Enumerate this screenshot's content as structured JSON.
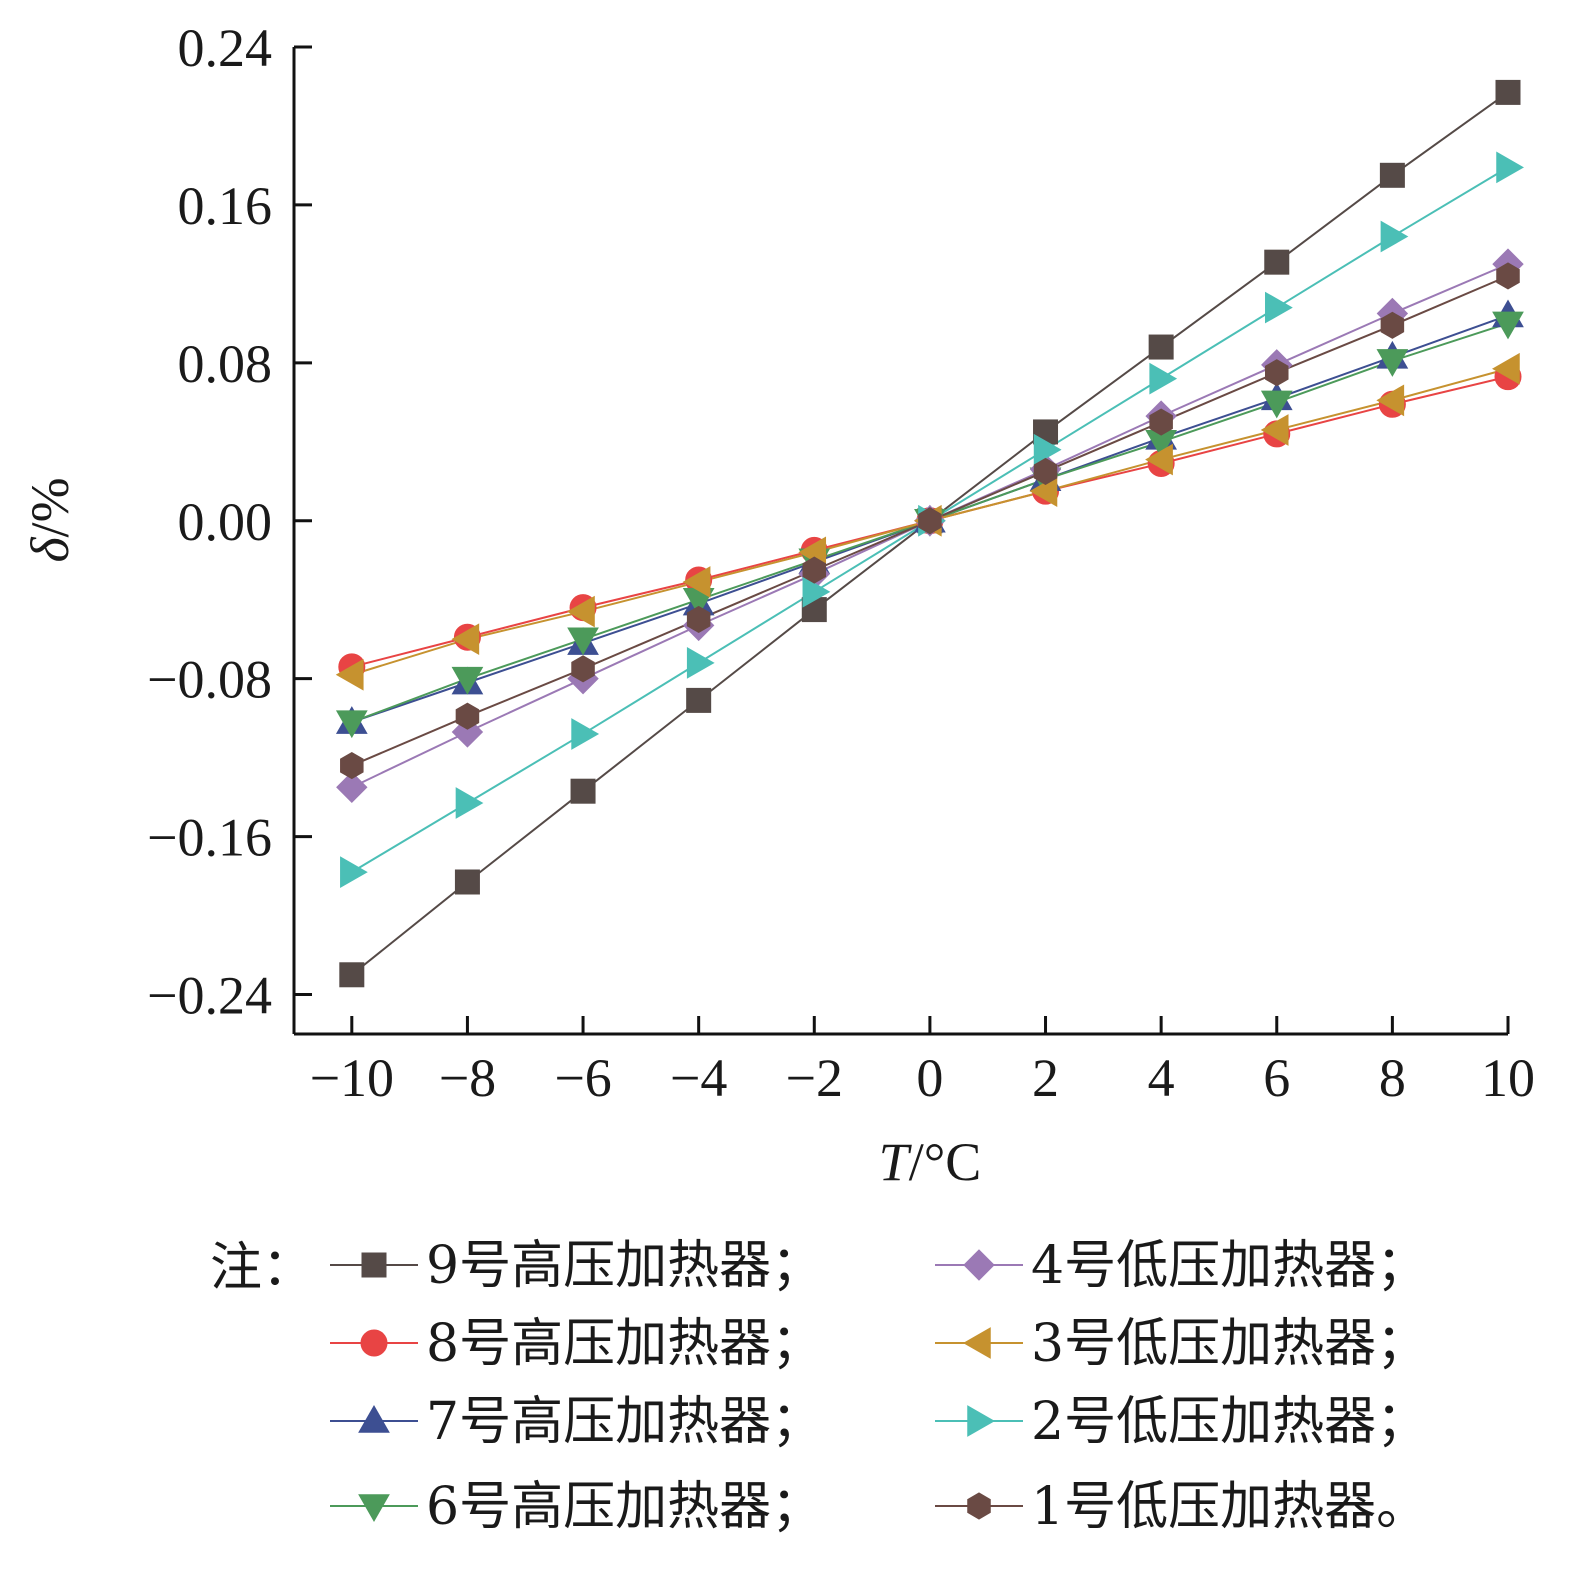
{
  "chart_data": {
    "type": "line",
    "title": "",
    "xlabel_italic": "T",
    "xlabel_rest": "/°C",
    "ylabel_italic": "δ",
    "ylabel_rest": "/%",
    "x": [
      -10,
      -8,
      -6,
      -4,
      -2,
      0,
      2,
      4,
      6,
      8,
      10
    ],
    "xlim": [
      -11,
      10
    ],
    "ylim": [
      -0.26,
      0.24
    ],
    "x_ticks": [
      -10,
      -8,
      -6,
      -4,
      -2,
      0,
      2,
      4,
      6,
      8,
      10
    ],
    "x_tick_labels": [
      "−10",
      "−8",
      "−6",
      "−4",
      "−2",
      "0",
      "2",
      "4",
      "6",
      "8",
      "10"
    ],
    "y_ticks": [
      -0.24,
      -0.16,
      -0.08,
      0.0,
      0.08,
      0.16,
      0.24
    ],
    "y_tick_labels": [
      "−0.24",
      "−0.16",
      "−0.08",
      "0.00",
      "0.08",
      "0.16",
      "0.24"
    ],
    "grid": false,
    "legend_prefix": "注：",
    "legend_placement": "bottom",
    "series": [
      {
        "name": "9号高压加热器；",
        "marker": "square",
        "color": "#554a47",
        "values": [
          -0.23,
          -0.183,
          -0.137,
          -0.091,
          -0.045,
          0.0,
          0.045,
          0.088,
          0.131,
          0.175,
          0.217
        ]
      },
      {
        "name": "8号高压加热器；",
        "marker": "circle",
        "color": "#e84444",
        "values": [
          -0.074,
          -0.059,
          -0.044,
          -0.03,
          -0.015,
          0.0,
          0.015,
          0.029,
          0.044,
          0.059,
          0.073
        ]
      },
      {
        "name": "7号高压加热器；",
        "marker": "triangle-up",
        "color": "#3d4f92",
        "values": [
          -0.102,
          -0.082,
          -0.062,
          -0.042,
          -0.021,
          0.0,
          0.021,
          0.042,
          0.062,
          0.083,
          0.104
        ]
      },
      {
        "name": "6号高压加热器；",
        "marker": "triangle-down",
        "color": "#4c9a5a",
        "values": [
          -0.102,
          -0.08,
          -0.06,
          -0.04,
          -0.02,
          0.0,
          0.021,
          0.04,
          0.06,
          0.081,
          0.1
        ]
      },
      {
        "name": "4号低压加热器；",
        "marker": "diamond",
        "color": "#9b79b5",
        "values": [
          -0.135,
          -0.107,
          -0.08,
          -0.053,
          -0.027,
          0.0,
          0.026,
          0.053,
          0.079,
          0.105,
          0.13
        ]
      },
      {
        "name": "3号低压加热器；",
        "marker": "triangle-left",
        "color": "#c6922f",
        "values": [
          -0.078,
          -0.06,
          -0.046,
          -0.031,
          -0.016,
          0.0,
          0.015,
          0.031,
          0.046,
          0.061,
          0.077
        ]
      },
      {
        "name": "2号低压加热器；",
        "marker": "triangle-right",
        "color": "#4bbfb6",
        "values": [
          -0.178,
          -0.143,
          -0.108,
          -0.072,
          -0.036,
          0.0,
          0.036,
          0.072,
          0.108,
          0.144,
          0.179
        ]
      },
      {
        "name": "1号低压加热器。",
        "marker": "hexagon",
        "color": "#6a4a44",
        "values": [
          -0.124,
          -0.099,
          -0.075,
          -0.05,
          -0.025,
          0.0,
          0.025,
          0.05,
          0.075,
          0.099,
          0.124
        ]
      }
    ]
  }
}
